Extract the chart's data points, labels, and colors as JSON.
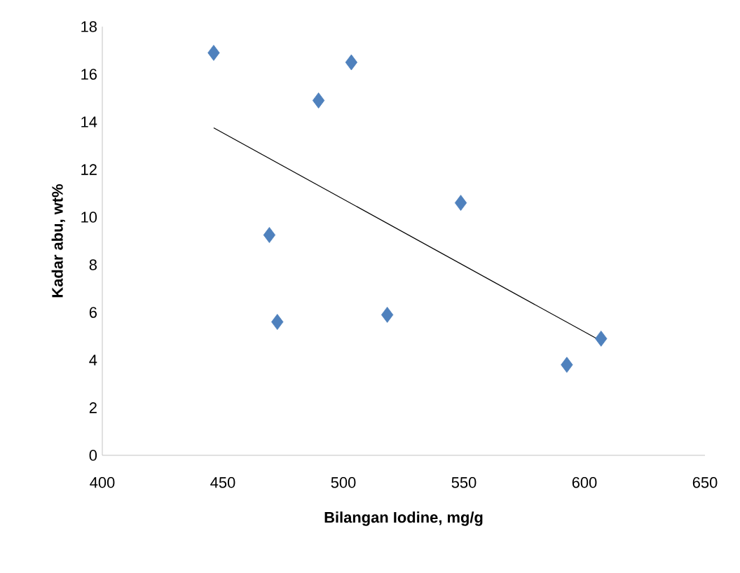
{
  "chart_data": {
    "type": "scatter",
    "xlabel": "Bilangan Iodine, mg/g",
    "ylabel": "Kadar abu, wt%",
    "xlim": [
      400,
      650
    ],
    "xticks": [
      400,
      450,
      500,
      550,
      600,
      650
    ],
    "ylim": [
      0,
      18
    ],
    "yticks": [
      0,
      2,
      4,
      6,
      8,
      10,
      12,
      14,
      16,
      18
    ],
    "grid": false,
    "series": [
      {
        "marker": "diamond",
        "color": "#4f81bd",
        "x": [
          446.2,
          503.3,
          489.7,
          548.7,
          469.3,
          472.6,
          518.2,
          592.7,
          606.9
        ],
        "values": [
          16.9,
          16.5,
          14.9,
          10.6,
          9.25,
          5.6,
          5.9,
          3.8,
          4.9
        ]
      },
      {
        "type": "line",
        "marker": "none",
        "color": "#000000",
        "x": [
          446.2,
          606.9
        ],
        "values": [
          13.75,
          4.8
        ]
      }
    ]
  }
}
